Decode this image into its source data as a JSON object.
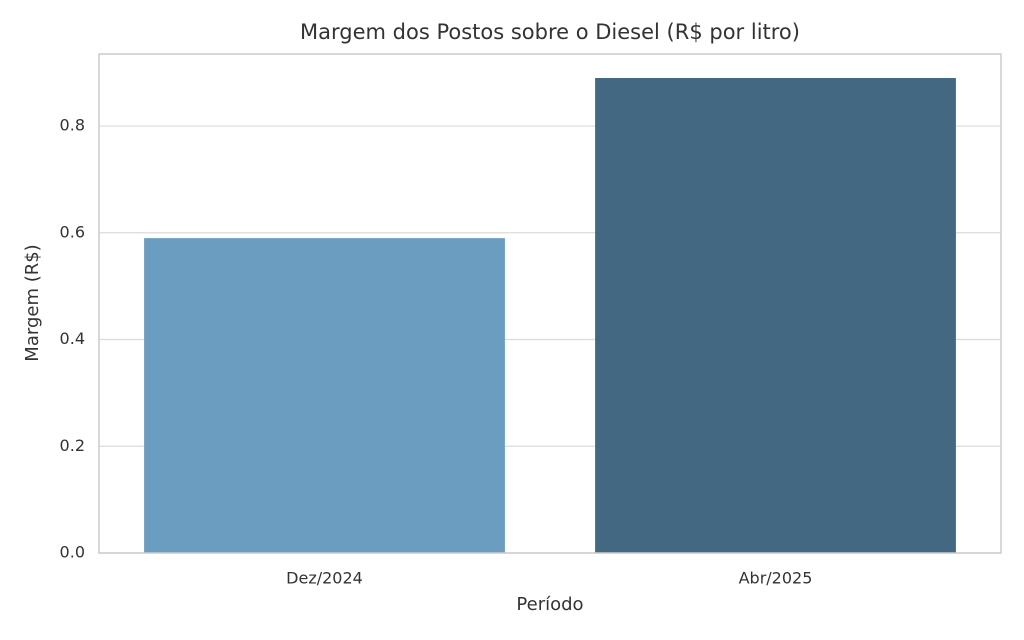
{
  "chart_data": {
    "type": "bar",
    "title": "Margem dos Postos sobre o Diesel (R$ por litro)",
    "x_label": "Período",
    "y_label": "Margem (R$)",
    "categories": [
      "Dez/2024",
      "Abr/2025"
    ],
    "values": [
      0.59,
      0.89
    ],
    "colors": [
      "#6b9dc0",
      "#426882"
    ],
    "ylim": [
      0,
      0.935
    ],
    "yticks": [
      {
        "value": 0,
        "label": "0.0"
      },
      0.2,
      0.4,
      0.6,
      0.8
    ],
    "grid": true
  }
}
